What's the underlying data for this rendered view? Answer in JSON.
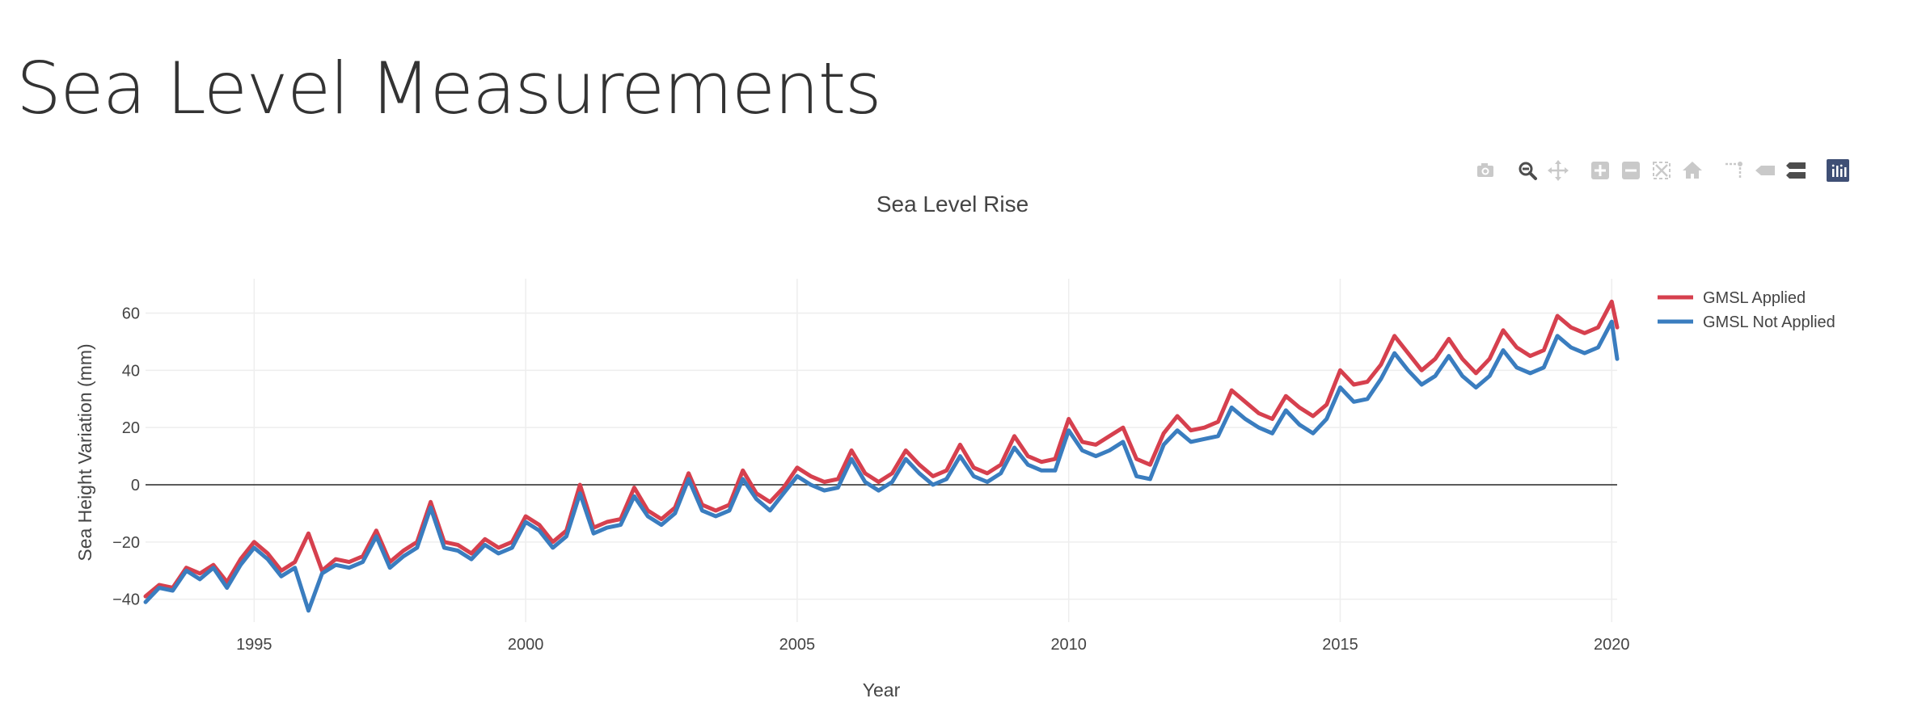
{
  "page": {
    "title": "Sea Level Measurements"
  },
  "modebar": {
    "buttons": [
      "camera-icon",
      "zoom-icon",
      "pan-icon",
      "zoom-in-icon",
      "zoom-out-icon",
      "autoscale-icon",
      "reset-axes-icon",
      "spike-lines-icon",
      "hover-closest-icon",
      "hover-compare-icon",
      "plotly-logo-icon"
    ],
    "active": "zoom-icon"
  },
  "colors": {
    "applied": "#d6404e",
    "not_applied": "#3a7dbf",
    "text": "#444444",
    "grid": "#eeeeee",
    "zeroline": "#444444",
    "plotly": "#3f4f75"
  },
  "chart_data": {
    "type": "line",
    "title": "Sea Level Rise",
    "xlabel": "Year",
    "ylabel": "Sea Height Variation (mm)",
    "xlim": [
      1993.0,
      2020.1
    ],
    "ylim": [
      -48,
      72
    ],
    "xticks": [
      1995,
      2000,
      2005,
      2010,
      2015,
      2020
    ],
    "xtick_labels": [
      "1995",
      "2000",
      "2005",
      "2010",
      "2015",
      "2020"
    ],
    "yticks": [
      -40,
      -20,
      0,
      20,
      40,
      60
    ],
    "ytick_labels": [
      "−40",
      "−20",
      "0",
      "20",
      "40",
      "60"
    ],
    "grid": true,
    "zeroline": true,
    "legend": "top-right",
    "series": [
      {
        "name": "GMSL Applied",
        "color": "#d6404e",
        "x": [
          1993.0,
          1993.25,
          1993.5,
          1993.75,
          1994.0,
          1994.25,
          1994.5,
          1994.75,
          1995.0,
          1995.25,
          1995.5,
          1995.75,
          1996.0,
          1996.25,
          1996.5,
          1996.75,
          1997.0,
          1997.25,
          1997.5,
          1997.75,
          1998.0,
          1998.25,
          1998.5,
          1998.75,
          1999.0,
          1999.25,
          1999.5,
          1999.75,
          2000.0,
          2000.25,
          2000.5,
          2000.75,
          2001.0,
          2001.25,
          2001.5,
          2001.75,
          2002.0,
          2002.25,
          2002.5,
          2002.75,
          2003.0,
          2003.25,
          2003.5,
          2003.75,
          2004.0,
          2004.25,
          2004.5,
          2004.75,
          2005.0,
          2005.25,
          2005.5,
          2005.75,
          2006.0,
          2006.25,
          2006.5,
          2006.75,
          2007.0,
          2007.25,
          2007.5,
          2007.75,
          2008.0,
          2008.25,
          2008.5,
          2008.75,
          2009.0,
          2009.25,
          2009.5,
          2009.75,
          2010.0,
          2010.25,
          2010.5,
          2010.75,
          2011.0,
          2011.25,
          2011.5,
          2011.75,
          2012.0,
          2012.25,
          2012.5,
          2012.75,
          2013.0,
          2013.25,
          2013.5,
          2013.75,
          2014.0,
          2014.25,
          2014.5,
          2014.75,
          2015.0,
          2015.25,
          2015.5,
          2015.75,
          2016.0,
          2016.25,
          2016.5,
          2016.75,
          2017.0,
          2017.25,
          2017.5,
          2017.75,
          2018.0,
          2018.25,
          2018.5,
          2018.75,
          2019.0,
          2019.25,
          2019.5,
          2019.75,
          2020.0,
          2020.1
        ],
        "y": [
          -39,
          -35,
          -36,
          -29,
          -31,
          -28,
          -34,
          -26,
          -20,
          -24,
          -30,
          -27,
          -17,
          -30,
          -26,
          -27,
          -25,
          -16,
          -27,
          -23,
          -20,
          -6,
          -20,
          -21,
          -24,
          -19,
          -22,
          -20,
          -11,
          -14,
          -20,
          -16,
          0,
          -15,
          -13,
          -12,
          -1,
          -9,
          -12,
          -8,
          4,
          -7,
          -9,
          -7,
          5,
          -3,
          -6,
          -1,
          6,
          3,
          1,
          2,
          12,
          4,
          1,
          4,
          12,
          7,
          3,
          5,
          14,
          6,
          4,
          7,
          17,
          10,
          8,
          9,
          23,
          15,
          14,
          17,
          20,
          9,
          7,
          18,
          24,
          19,
          20,
          22,
          33,
          29,
          25,
          23,
          31,
          27,
          24,
          28,
          40,
          35,
          36,
          42,
          52,
          46,
          40,
          44,
          51,
          44,
          39,
          44,
          54,
          48,
          45,
          47,
          59,
          55,
          53,
          55,
          64,
          55
        ]
      },
      {
        "name": "GMSL Not Applied",
        "color": "#3a7dbf",
        "x": [
          1993.0,
          1993.25,
          1993.5,
          1993.75,
          1994.0,
          1994.25,
          1994.5,
          1994.75,
          1995.0,
          1995.25,
          1995.5,
          1995.75,
          1996.0,
          1996.25,
          1996.5,
          1996.75,
          1997.0,
          1997.25,
          1997.5,
          1997.75,
          1998.0,
          1998.25,
          1998.5,
          1998.75,
          1999.0,
          1999.25,
          1999.5,
          1999.75,
          2000.0,
          2000.25,
          2000.5,
          2000.75,
          2001.0,
          2001.25,
          2001.5,
          2001.75,
          2002.0,
          2002.25,
          2002.5,
          2002.75,
          2003.0,
          2003.25,
          2003.5,
          2003.75,
          2004.0,
          2004.25,
          2004.5,
          2004.75,
          2005.0,
          2005.25,
          2005.5,
          2005.75,
          2006.0,
          2006.25,
          2006.5,
          2006.75,
          2007.0,
          2007.25,
          2007.5,
          2007.75,
          2008.0,
          2008.25,
          2008.5,
          2008.75,
          2009.0,
          2009.25,
          2009.5,
          2009.75,
          2010.0,
          2010.25,
          2010.5,
          2010.75,
          2011.0,
          2011.25,
          2011.5,
          2011.75,
          2012.0,
          2012.25,
          2012.5,
          2012.75,
          2013.0,
          2013.25,
          2013.5,
          2013.75,
          2014.0,
          2014.25,
          2014.5,
          2014.75,
          2015.0,
          2015.25,
          2015.5,
          2015.75,
          2016.0,
          2016.25,
          2016.5,
          2016.75,
          2017.0,
          2017.25,
          2017.5,
          2017.75,
          2018.0,
          2018.25,
          2018.5,
          2018.75,
          2019.0,
          2019.25,
          2019.5,
          2019.75,
          2020.0,
          2020.1
        ],
        "y": [
          -41,
          -36,
          -37,
          -30,
          -33,
          -29,
          -36,
          -28,
          -22,
          -26,
          -32,
          -29,
          -44,
          -31,
          -28,
          -29,
          -27,
          -18,
          -29,
          -25,
          -22,
          -8,
          -22,
          -23,
          -26,
          -21,
          -24,
          -22,
          -13,
          -16,
          -22,
          -18,
          -3,
          -17,
          -15,
          -14,
          -4,
          -11,
          -14,
          -10,
          2,
          -9,
          -11,
          -9,
          2,
          -5,
          -9,
          -3,
          3,
          0,
          -2,
          -1,
          9,
          1,
          -2,
          1,
          9,
          4,
          0,
          2,
          10,
          3,
          1,
          4,
          13,
          7,
          5,
          5,
          19,
          12,
          10,
          12,
          15,
          3,
          2,
          14,
          19,
          15,
          16,
          17,
          27,
          23,
          20,
          18,
          26,
          21,
          18,
          23,
          34,
          29,
          30,
          37,
          46,
          40,
          35,
          38,
          45,
          38,
          34,
          38,
          47,
          41,
          39,
          41,
          52,
          48,
          46,
          48,
          57,
          44
        ]
      }
    ]
  }
}
